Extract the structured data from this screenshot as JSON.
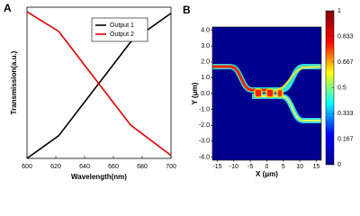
{
  "chart_data": [
    {
      "type": "line",
      "label": "A",
      "xlabel": "Wavelength(nm)",
      "ylabel": "Transmission(a.u.)",
      "x": [
        600,
        622,
        672,
        700
      ],
      "series": [
        {
          "name": "Output 1",
          "color": "#000000",
          "values": [
            0,
            0.15,
            0.77,
            0.96
          ]
        },
        {
          "name": "Output 2",
          "color": "#e00000",
          "values": [
            0.97,
            0.84,
            0.22,
            0.02
          ]
        }
      ],
      "xlim": [
        600,
        700
      ],
      "ylim": [
        0,
        1
      ],
      "xticks": [
        600,
        620,
        640,
        660,
        680,
        700
      ]
    },
    {
      "type": "heatmap",
      "label": "B",
      "xlabel": "X (μm)",
      "ylabel": "Y (μm)",
      "xlim": [
        -16.5,
        16.5
      ],
      "ylim": [
        -4.2,
        4.2
      ],
      "xticks": [
        -15,
        -10,
        -5,
        0,
        5,
        10,
        15
      ],
      "yticks": [
        {
          "value": 4,
          "label": "4.0"
        },
        {
          "value": 3,
          "label": "3.0"
        },
        {
          "value": 2,
          "label": "2.0"
        },
        {
          "value": 1,
          "label": "1.0"
        },
        {
          "value": 0,
          "label": "0.0"
        },
        {
          "value": -1,
          "label": "-1.0"
        },
        {
          "value": -2,
          "label": "-2.0"
        },
        {
          "value": -3,
          "label": "-3.0"
        },
        {
          "value": -4,
          "label": "-4.0"
        }
      ],
      "clim": [
        0,
        1
      ],
      "cticks": [
        1,
        0.833,
        0.667,
        0.5,
        0.333,
        0.167,
        0
      ],
      "colormap": [
        "#00008f",
        "#0000ff",
        "#00ffff",
        "#ffff00",
        "#ff0000",
        "#800000"
      ]
    }
  ]
}
